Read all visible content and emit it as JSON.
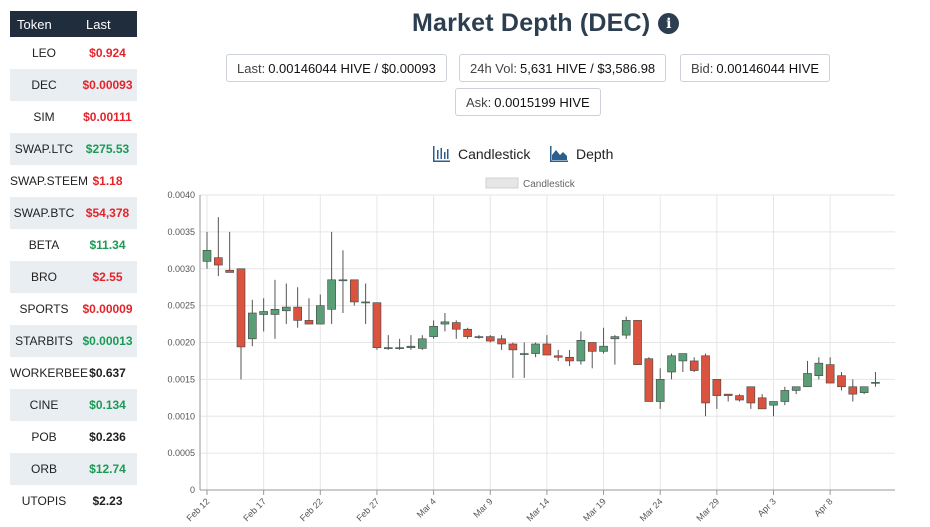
{
  "sidebar": {
    "headers": {
      "token": "Token",
      "last": "Last"
    },
    "rows": [
      {
        "symbol": "LEO",
        "price": "$0.924",
        "color": "red"
      },
      {
        "symbol": "DEC",
        "price": "$0.00093",
        "color": "red"
      },
      {
        "symbol": "SIM",
        "price": "$0.00111",
        "color": "red"
      },
      {
        "symbol": "SWAP.LTC",
        "price": "$275.53",
        "color": "green"
      },
      {
        "symbol": "SWAP.STEEM",
        "price": "$1.18",
        "color": "red"
      },
      {
        "symbol": "SWAP.BTC",
        "price": "$54,378",
        "color": "red"
      },
      {
        "symbol": "BETA",
        "price": "$11.34",
        "color": "green"
      },
      {
        "symbol": "BRO",
        "price": "$2.55",
        "color": "red"
      },
      {
        "symbol": "SPORTS",
        "price": "$0.00009",
        "color": "red"
      },
      {
        "symbol": "STARBITS",
        "price": "$0.00013",
        "color": "green"
      },
      {
        "symbol": "WORKERBEE",
        "price": "$0.637",
        "color": "dark"
      },
      {
        "symbol": "CINE",
        "price": "$0.134",
        "color": "green"
      },
      {
        "symbol": "POB",
        "price": "$0.236",
        "color": "dark"
      },
      {
        "symbol": "ORB",
        "price": "$12.74",
        "color": "green"
      },
      {
        "symbol": "UTOPIS",
        "price": "$2.23",
        "color": "dark"
      }
    ]
  },
  "header": {
    "title": "Market Depth (DEC)",
    "info_icon": "info-icon"
  },
  "stats": {
    "last": {
      "label": "Last:",
      "value": "0.00146044 HIVE / $0.00093"
    },
    "vol": {
      "label": "24h Vol:",
      "value": "5,631 HIVE / $3,586.98"
    },
    "bid": {
      "label": "Bid:",
      "value": "0.00146044 HIVE"
    },
    "ask": {
      "label": "Ask:",
      "value": "0.0015199 HIVE"
    }
  },
  "toggles": {
    "candlestick": {
      "label": "Candlestick",
      "icon": "candlestick-icon"
    },
    "depth": {
      "label": "Depth",
      "icon": "area-chart-icon"
    }
  },
  "colors": {
    "up": "#5a9e78",
    "down": "#d9533f",
    "red_text": "#e3242b",
    "green_text": "#1c9a55",
    "header_bg": "#1f2d3d"
  },
  "chart_data": {
    "type": "candlestick",
    "legend": "Candlestick",
    "legend_position": "top-center",
    "grid": true,
    "ylim": [
      0,
      0.004
    ],
    "yticks": [
      "0",
      "0.0005",
      "0.0010",
      "0.0015",
      "0.0020",
      "0.0025",
      "0.0030",
      "0.0035",
      "0.0040"
    ],
    "xtick_labels": [
      "Feb 12",
      "Feb 17",
      "Feb 22",
      "Feb 27",
      "Mar 4",
      "Mar 9",
      "Mar 14",
      "Mar 19",
      "Mar 24",
      "Mar 29",
      "Apr 3",
      "Apr 8"
    ],
    "xtick_days": [
      0,
      5,
      10,
      15,
      20,
      25,
      30,
      35,
      40,
      45,
      50,
      55
    ],
    "x_days_total": 61,
    "candles": [
      {
        "day": 0,
        "open": 0.0031,
        "high": 0.0035,
        "low": 0.003,
        "close": 0.00325
      },
      {
        "day": 1,
        "open": 0.00315,
        "high": 0.0037,
        "low": 0.0029,
        "close": 0.00305
      },
      {
        "day": 2,
        "open": 0.00298,
        "high": 0.0035,
        "low": 0.00295,
        "close": 0.00295
      },
      {
        "day": 3,
        "open": 0.003,
        "high": 0.003,
        "low": 0.0015,
        "close": 0.00194
      },
      {
        "day": 4,
        "open": 0.00205,
        "high": 0.00258,
        "low": 0.00195,
        "close": 0.0024
      },
      {
        "day": 5,
        "open": 0.00238,
        "high": 0.0026,
        "low": 0.00215,
        "close": 0.00242
      },
      {
        "day": 6,
        "open": 0.00238,
        "high": 0.00285,
        "low": 0.00205,
        "close": 0.00245
      },
      {
        "day": 7,
        "open": 0.00243,
        "high": 0.0028,
        "low": 0.00225,
        "close": 0.00248
      },
      {
        "day": 8,
        "open": 0.00248,
        "high": 0.00275,
        "low": 0.0022,
        "close": 0.0023
      },
      {
        "day": 9,
        "open": 0.0023,
        "high": 0.0026,
        "low": 0.00225,
        "close": 0.00225
      },
      {
        "day": 10,
        "open": 0.00225,
        "high": 0.00265,
        "low": 0.00225,
        "close": 0.0025
      },
      {
        "day": 11,
        "open": 0.00245,
        "high": 0.0035,
        "low": 0.00225,
        "close": 0.00285
      },
      {
        "day": 12,
        "open": 0.00285,
        "high": 0.00325,
        "low": 0.0024,
        "close": 0.00285
      },
      {
        "day": 13,
        "open": 0.00285,
        "high": 0.00285,
        "low": 0.0025,
        "close": 0.00255
      },
      {
        "day": 14,
        "open": 0.00255,
        "high": 0.0028,
        "low": 0.00225,
        "close": 0.00255
      },
      {
        "day": 15,
        "open": 0.00254,
        "high": 0.00254,
        "low": 0.0019,
        "close": 0.00193
      },
      {
        "day": 16,
        "open": 0.00193,
        "high": 0.0021,
        "low": 0.0019,
        "close": 0.00193
      },
      {
        "day": 17,
        "open": 0.00192,
        "high": 0.00205,
        "low": 0.0019,
        "close": 0.00193
      },
      {
        "day": 18,
        "open": 0.00193,
        "high": 0.0021,
        "low": 0.0019,
        "close": 0.00195
      },
      {
        "day": 19,
        "open": 0.00192,
        "high": 0.0021,
        "low": 0.0019,
        "close": 0.00205
      },
      {
        "day": 20,
        "open": 0.00208,
        "high": 0.0023,
        "low": 0.00205,
        "close": 0.00222
      },
      {
        "day": 21,
        "open": 0.00225,
        "high": 0.0024,
        "low": 0.00215,
        "close": 0.00228
      },
      {
        "day": 22,
        "open": 0.00227,
        "high": 0.0023,
        "low": 0.00205,
        "close": 0.00218
      },
      {
        "day": 23,
        "open": 0.00218,
        "high": 0.0022,
        "low": 0.00205,
        "close": 0.00208
      },
      {
        "day": 24,
        "open": 0.00208,
        "high": 0.0021,
        "low": 0.00205,
        "close": 0.00208
      },
      {
        "day": 25,
        "open": 0.00208,
        "high": 0.0021,
        "low": 0.002,
        "close": 0.00202
      },
      {
        "day": 26,
        "open": 0.00205,
        "high": 0.0021,
        "low": 0.0019,
        "close": 0.00198
      },
      {
        "day": 27,
        "open": 0.00198,
        "high": 0.002,
        "low": 0.00152,
        "close": 0.0019
      },
      {
        "day": 28,
        "open": 0.00185,
        "high": 0.002,
        "low": 0.00152,
        "close": 0.00185
      },
      {
        "day": 29,
        "open": 0.00185,
        "high": 0.002,
        "low": 0.0018,
        "close": 0.00198
      },
      {
        "day": 30,
        "open": 0.00198,
        "high": 0.0021,
        "low": 0.00185,
        "close": 0.00183
      },
      {
        "day": 31,
        "open": 0.00182,
        "high": 0.0019,
        "low": 0.00175,
        "close": 0.0018
      },
      {
        "day": 32,
        "open": 0.0018,
        "high": 0.0019,
        "low": 0.00168,
        "close": 0.00175
      },
      {
        "day": 33,
        "open": 0.00175,
        "high": 0.00215,
        "low": 0.0017,
        "close": 0.00203
      },
      {
        "day": 34,
        "open": 0.002,
        "high": 0.002,
        "low": 0.00165,
        "close": 0.00188
      },
      {
        "day": 35,
        "open": 0.00188,
        "high": 0.0022,
        "low": 0.00185,
        "close": 0.00195
      },
      {
        "day": 36,
        "open": 0.00205,
        "high": 0.0021,
        "low": 0.0017,
        "close": 0.00208
      },
      {
        "day": 37,
        "open": 0.0021,
        "high": 0.00235,
        "low": 0.00205,
        "close": 0.0023
      },
      {
        "day": 38,
        "open": 0.0023,
        "high": 0.0023,
        "low": 0.0017,
        "close": 0.0017
      },
      {
        "day": 39,
        "open": 0.00178,
        "high": 0.0018,
        "low": 0.0012,
        "close": 0.0012
      },
      {
        "day": 40,
        "open": 0.0012,
        "high": 0.00165,
        "low": 0.0011,
        "close": 0.0015
      },
      {
        "day": 41,
        "open": 0.0016,
        "high": 0.00185,
        "low": 0.0015,
        "close": 0.00182
      },
      {
        "day": 42,
        "open": 0.00175,
        "high": 0.00185,
        "low": 0.0016,
        "close": 0.00185
      },
      {
        "day": 43,
        "open": 0.00175,
        "high": 0.0018,
        "low": 0.0016,
        "close": 0.00162
      },
      {
        "day": 44,
        "open": 0.00182,
        "high": 0.00185,
        "low": 0.001,
        "close": 0.00118
      },
      {
        "day": 45,
        "open": 0.0015,
        "high": 0.0015,
        "low": 0.0011,
        "close": 0.00128
      },
      {
        "day": 46,
        "open": 0.0013,
        "high": 0.0013,
        "low": 0.0012,
        "close": 0.00128
      },
      {
        "day": 47,
        "open": 0.00128,
        "high": 0.0013,
        "low": 0.0012,
        "close": 0.00122
      },
      {
        "day": 48,
        "open": 0.0014,
        "high": 0.0014,
        "low": 0.0011,
        "close": 0.00118
      },
      {
        "day": 49,
        "open": 0.00125,
        "high": 0.0013,
        "low": 0.0011,
        "close": 0.0011
      },
      {
        "day": 50,
        "open": 0.00115,
        "high": 0.0012,
        "low": 0.001,
        "close": 0.0012
      },
      {
        "day": 51,
        "open": 0.0012,
        "high": 0.0014,
        "low": 0.00115,
        "close": 0.00135
      },
      {
        "day": 52,
        "open": 0.00135,
        "high": 0.0014,
        "low": 0.0013,
        "close": 0.0014
      },
      {
        "day": 53,
        "open": 0.0014,
        "high": 0.00175,
        "low": 0.0014,
        "close": 0.00158
      },
      {
        "day": 54,
        "open": 0.00155,
        "high": 0.0018,
        "low": 0.0015,
        "close": 0.00172
      },
      {
        "day": 55,
        "open": 0.0017,
        "high": 0.0018,
        "low": 0.00145,
        "close": 0.00145
      },
      {
        "day": 56,
        "open": 0.00155,
        "high": 0.0016,
        "low": 0.00135,
        "close": 0.0014
      },
      {
        "day": 57,
        "open": 0.0014,
        "high": 0.0015,
        "low": 0.0012,
        "close": 0.0013
      },
      {
        "day": 58,
        "open": 0.00132,
        "high": 0.0014,
        "low": 0.0013,
        "close": 0.0014
      },
      {
        "day": 59,
        "open": 0.00145,
        "high": 0.0016,
        "low": 0.0014,
        "close": 0.00146
      }
    ]
  }
}
